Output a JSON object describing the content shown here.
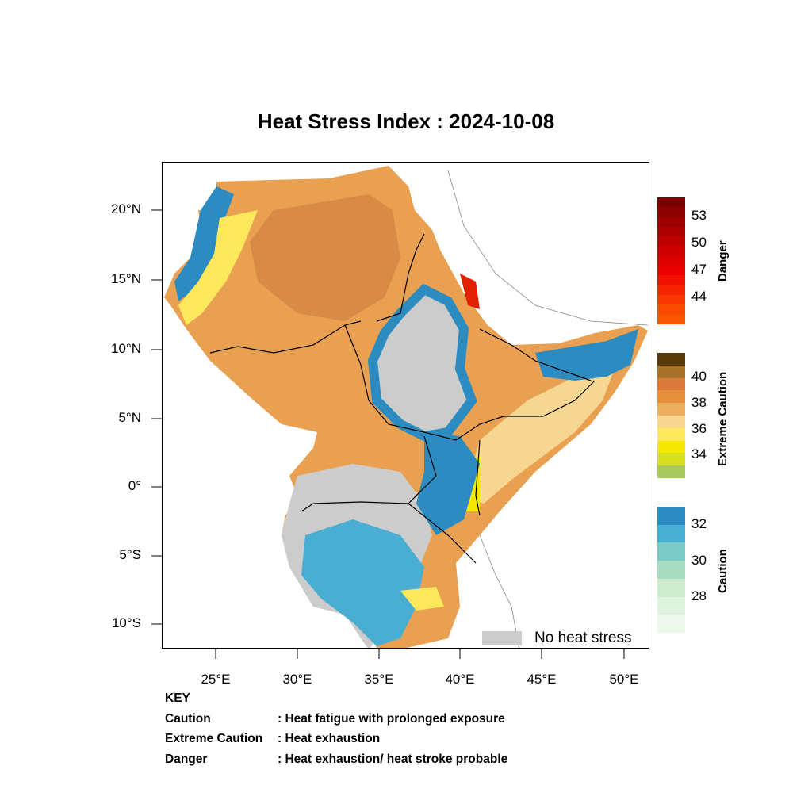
{
  "title": "Heat Stress Index : 2024-10-08",
  "axes": {
    "lat_labels": [
      "20°N",
      "15°N",
      "10°N",
      "5°N",
      "0°",
      "5°S",
      "10°S"
    ],
    "lon_labels": [
      "25°E",
      "30°E",
      "35°E",
      "40°E",
      "45°E",
      "50°E"
    ]
  },
  "legend": {
    "no_stress_label": "No heat stress",
    "no_stress_color": "#cccccc"
  },
  "colorbars": [
    {
      "title": "Danger",
      "labels": [
        "53",
        "50",
        "47",
        "44"
      ],
      "colors": [
        "#7a0000",
        "#8a0000",
        "#9c0000",
        "#ae0000",
        "#c00000",
        "#d00000",
        "#de0000",
        "#ea0000",
        "#f21000",
        "#f62400",
        "#f83800",
        "#fa4a00",
        "#fc5600"
      ]
    },
    {
      "title": "Extreme Caution",
      "labels": [
        "40",
        "38",
        "36",
        "34"
      ],
      "colors": [
        "#5a3a0a",
        "#a8712a",
        "#d97a3a",
        "#e58e3c",
        "#eeae60",
        "#f6d690",
        "#fce85a",
        "#f4e800",
        "#d6e01e",
        "#a8c860"
      ]
    },
    {
      "title": "Caution",
      "labels": [
        "32",
        "30",
        "28"
      ],
      "colors": [
        "#2c8bc0",
        "#4aaed2",
        "#7ccac8",
        "#a8dcc0",
        "#cbeccf",
        "#def3de",
        "#eef8ec"
      ]
    }
  ],
  "key": {
    "heading": "KEY",
    "rows": [
      {
        "term": "Caution",
        "desc": ": Heat fatigue with prolonged exposure"
      },
      {
        "term": "Extreme Caution",
        "desc": " : Heat exhaustion"
      },
      {
        "term": "Danger",
        "desc": ": Heat exhaustion/ heat stroke probable"
      }
    ]
  },
  "map_colors": {
    "sea": "#ffffff",
    "no_stress": "#cccccc",
    "caution_blue": "#2c8bc0",
    "caution_light": "#7ccac8",
    "yellow": "#fce85a",
    "bright_yellow": "#f4e800",
    "tan": "#f6d690",
    "orange": "#e9a050",
    "dark_orange": "#d97a3a",
    "red": "#e02000",
    "border": "#000000"
  }
}
